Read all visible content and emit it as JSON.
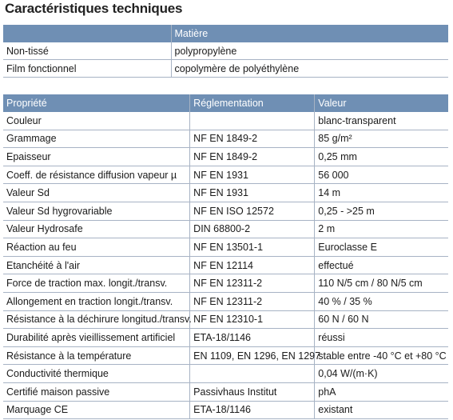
{
  "title": "Caractéristiques techniques",
  "material_table": {
    "header": [
      "",
      "Matière"
    ],
    "rows": [
      [
        "Non-tissé",
        "polypropylène"
      ],
      [
        "Film fonctionnel",
        "copolymère de polyéthylène"
      ]
    ]
  },
  "properties_table": {
    "header": [
      "Propriété",
      "Réglementation",
      "Valeur"
    ],
    "rows": [
      [
        "Couleur",
        "",
        "blanc-transparent"
      ],
      [
        "Grammage",
        "NF EN 1849-2",
        "85 g/m²"
      ],
      [
        "Epaisseur",
        "NF EN 1849-2",
        "0,25 mm"
      ],
      [
        "Coeff. de résistance diffusion vapeur µ",
        "NF EN 1931",
        "56 000"
      ],
      [
        "Valeur Sd",
        "NF EN 1931",
        "14 m"
      ],
      [
        "Valeur Sd hygrovariable",
        "NF EN ISO 12572",
        "0,25 - >25 m"
      ],
      [
        "Valeur Hydrosafe",
        "DIN 68800-2",
        "2 m"
      ],
      [
        "Réaction au feu",
        "NF EN 13501-1",
        "Euroclasse E"
      ],
      [
        "Etanchéité à l'air",
        "NF EN 12114",
        "effectué"
      ],
      [
        "Force de traction max. longit./transv.",
        "NF EN 12311-2",
        "110 N/5 cm / 80 N/5 cm"
      ],
      [
        "Allongement en traction longit./transv.",
        "NF EN 12311-2",
        "40 % / 35 %"
      ],
      [
        "Résistance à la déchirure longitud./transv.",
        "NF EN 12310-1",
        "60 N / 60 N"
      ],
      [
        "Durabilité après vieillissement artificiel",
        "ETA-18/1146",
        "réussi"
      ],
      [
        "Résistance à la température",
        "EN 1109, EN 1296, EN 1297",
        "stable entre -40 °C et +80 °C"
      ],
      [
        "Conductivité thermique",
        "",
        "0,04 W/(m·K)"
      ],
      [
        "Certifié maison passive",
        "Passivhaus Institut",
        "phA"
      ],
      [
        "Marquage CE",
        "ETA-18/1146",
        "existant"
      ]
    ]
  }
}
